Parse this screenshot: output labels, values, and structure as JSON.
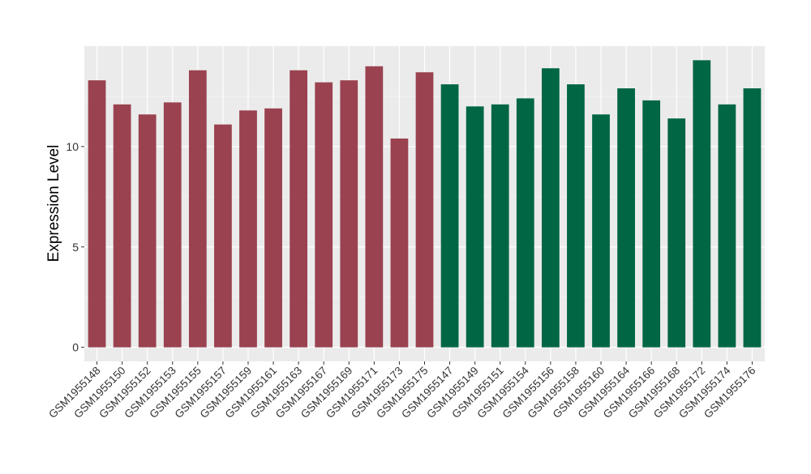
{
  "chart_data": {
    "type": "bar",
    "title": "",
    "xlabel": "",
    "ylabel": "Expression Level",
    "ylim": [
      -0.7,
      15.0
    ],
    "yticks": [
      0,
      5,
      10
    ],
    "grid": true,
    "legend": "none",
    "colors": {
      "panel_background": "#ebebeb",
      "grid_major": "#ffffff",
      "group_1": "#9a4250",
      "group_2": "#006644"
    },
    "categories": [
      "GSM1955148",
      "GSM1955150",
      "GSM1955152",
      "GSM1955153",
      "GSM1955155",
      "GSM1955157",
      "GSM1955159",
      "GSM1955161",
      "GSM1955163",
      "GSM1955167",
      "GSM1955169",
      "GSM1955171",
      "GSM1955173",
      "GSM1955175",
      "GSM1955147",
      "GSM1955149",
      "GSM1955151",
      "GSM1955154",
      "GSM1955156",
      "GSM1955158",
      "GSM1955160",
      "GSM1955164",
      "GSM1955166",
      "GSM1955168",
      "GSM1955172",
      "GSM1955174",
      "GSM1955176"
    ],
    "values": [
      13.3,
      12.1,
      11.6,
      12.2,
      13.8,
      11.1,
      11.8,
      11.9,
      13.8,
      13.2,
      13.3,
      14.0,
      10.4,
      13.7,
      13.1,
      12.0,
      12.1,
      12.4,
      13.9,
      13.1,
      11.6,
      12.9,
      12.3,
      11.4,
      14.3,
      12.1,
      12.9
    ],
    "group_of_bar": [
      1,
      1,
      1,
      1,
      1,
      1,
      1,
      1,
      1,
      1,
      1,
      1,
      1,
      1,
      2,
      2,
      2,
      2,
      2,
      2,
      2,
      2,
      2,
      2,
      2,
      2,
      2
    ]
  }
}
